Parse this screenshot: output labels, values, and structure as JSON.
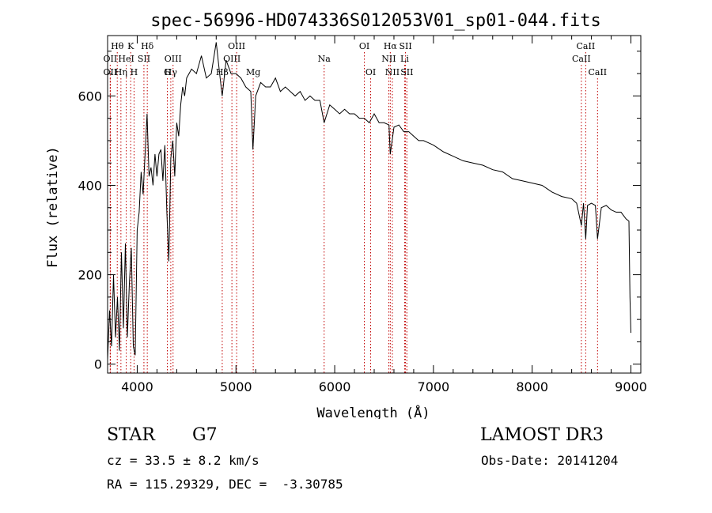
{
  "chart_data": {
    "type": "line",
    "title": "spec-56996-HD074336S012053V01_sp01-044.fits",
    "xlabel": "Wavelength (Å)",
    "ylabel": "Flux (relative)",
    "xlim": [
      3700,
      9100
    ],
    "ylim": [
      -20,
      735
    ],
    "x_ticks": [
      4000,
      5000,
      6000,
      7000,
      8000,
      9000
    ],
    "y_ticks": [
      0,
      200,
      400,
      600
    ],
    "grid": false,
    "line_color": "#000000",
    "marker_color": "#c00000",
    "series": [
      {
        "x": [
          3700,
          3720,
          3740,
          3760,
          3780,
          3800,
          3820,
          3840,
          3860,
          3880,
          3900,
          3920,
          3940,
          3960,
          3980,
          4000,
          4020,
          4040,
          4060,
          4080,
          4100,
          4120,
          4140,
          4160,
          4180,
          4200,
          4220,
          4240,
          4260,
          4280,
          4300,
          4320,
          4340,
          4360,
          4380,
          4400,
          4420,
          4440,
          4460,
          4480,
          4500,
          4550,
          4600,
          4650,
          4700,
          4750,
          4800,
          4850,
          4861,
          4900,
          4950,
          5000,
          5050,
          5100,
          5150,
          5172,
          5200,
          5250,
          5300,
          5350,
          5400,
          5450,
          5500,
          5550,
          5600,
          5650,
          5700,
          5750,
          5800,
          5850,
          5893,
          5950,
          6000,
          6050,
          6100,
          6150,
          6200,
          6250,
          6300,
          6350,
          6400,
          6450,
          6500,
          6550,
          6563,
          6600,
          6650,
          6700,
          6750,
          6800,
          6850,
          6900,
          6950,
          7000,
          7100,
          7200,
          7300,
          7400,
          7500,
          7600,
          7700,
          7800,
          7900,
          8000,
          8100,
          8200,
          8300,
          8400,
          8450,
          8498,
          8520,
          8542,
          8560,
          8600,
          8640,
          8662,
          8700,
          8750,
          8800,
          8850,
          8900,
          8950,
          8980,
          8990,
          9000
        ],
        "values": [
          10,
          120,
          40,
          200,
          60,
          150,
          30,
          250,
          80,
          270,
          60,
          180,
          260,
          40,
          20,
          300,
          340,
          430,
          380,
          470,
          560,
          420,
          440,
          400,
          470,
          420,
          470,
          480,
          410,
          490,
          340,
          230,
          460,
          500,
          420,
          540,
          510,
          580,
          620,
          600,
          640,
          660,
          650,
          690,
          640,
          650,
          720,
          620,
          600,
          680,
          650,
          650,
          640,
          620,
          610,
          480,
          600,
          630,
          620,
          620,
          640,
          610,
          620,
          610,
          600,
          610,
          590,
          600,
          590,
          590,
          540,
          580,
          570,
          560,
          570,
          560,
          560,
          550,
          550,
          540,
          560,
          540,
          540,
          535,
          470,
          530,
          535,
          520,
          520,
          510,
          500,
          500,
          495,
          490,
          475,
          465,
          455,
          450,
          445,
          435,
          430,
          415,
          410,
          405,
          400,
          385,
          375,
          370,
          360,
          310,
          360,
          280,
          355,
          360,
          355,
          280,
          350,
          355,
          345,
          340,
          340,
          325,
          320,
          150,
          70
        ]
      }
    ],
    "lines": [
      {
        "label": "Hθ",
        "wave": 3798,
        "row": 1
      },
      {
        "label": "OII",
        "wave": 3727,
        "row": 2
      },
      {
        "label": "OII",
        "wave": 3727,
        "row": 3
      },
      {
        "label": "K",
        "wave": 3934,
        "row": 1
      },
      {
        "label": "HeI",
        "wave": 3889,
        "row": 2
      },
      {
        "label": "Hη",
        "wave": 3835,
        "row": 3
      },
      {
        "label": "Hδ",
        "wave": 4102,
        "row": 1
      },
      {
        "label": "SII",
        "wave": 4068,
        "row": 2
      },
      {
        "label": "H",
        "wave": 3968,
        "row": 3
      },
      {
        "label": "OIII",
        "wave": 4363,
        "row": 2
      },
      {
        "label": "Hγ",
        "wave": 4340,
        "row": 3
      },
      {
        "label": "G",
        "wave": 4305,
        "row": 4
      },
      {
        "label": "OIII",
        "wave": 5007,
        "row": 1
      },
      {
        "label": "OIII",
        "wave": 4959,
        "row": 2
      },
      {
        "label": "Hβ",
        "wave": 4861,
        "row": 3
      },
      {
        "label": "Mg",
        "wave": 5175,
        "row": 3
      },
      {
        "label": "Na",
        "wave": 5893,
        "row": 2
      },
      {
        "label": "OI",
        "wave": 6300,
        "row": 1
      },
      {
        "label": "OI",
        "wave": 6364,
        "row": 3
      },
      {
        "label": "Hα",
        "wave": 6563,
        "row": 1
      },
      {
        "label": "NII",
        "wave": 6548,
        "row": 2
      },
      {
        "label": "NII",
        "wave": 6584,
        "row": 3
      },
      {
        "label": "SII",
        "wave": 6717,
        "row": 1
      },
      {
        "label": "Li",
        "wave": 6708,
        "row": 2
      },
      {
        "label": "SII",
        "wave": 6731,
        "row": 3
      },
      {
        "label": "CaII",
        "wave": 8542,
        "row": 1
      },
      {
        "label": "CaII",
        "wave": 8498,
        "row": 2
      },
      {
        "label": "CaII",
        "wave": 8662,
        "row": 3
      }
    ]
  },
  "info": {
    "object_type": "STAR",
    "subclass": "G7",
    "survey": "LAMOST DR3",
    "cz": "cz = 33.5 ± 8.2 km/s",
    "obs_date": "Obs-Date: 20141204",
    "coords": "RA = 115.29329, DEC =  -3.30785"
  }
}
